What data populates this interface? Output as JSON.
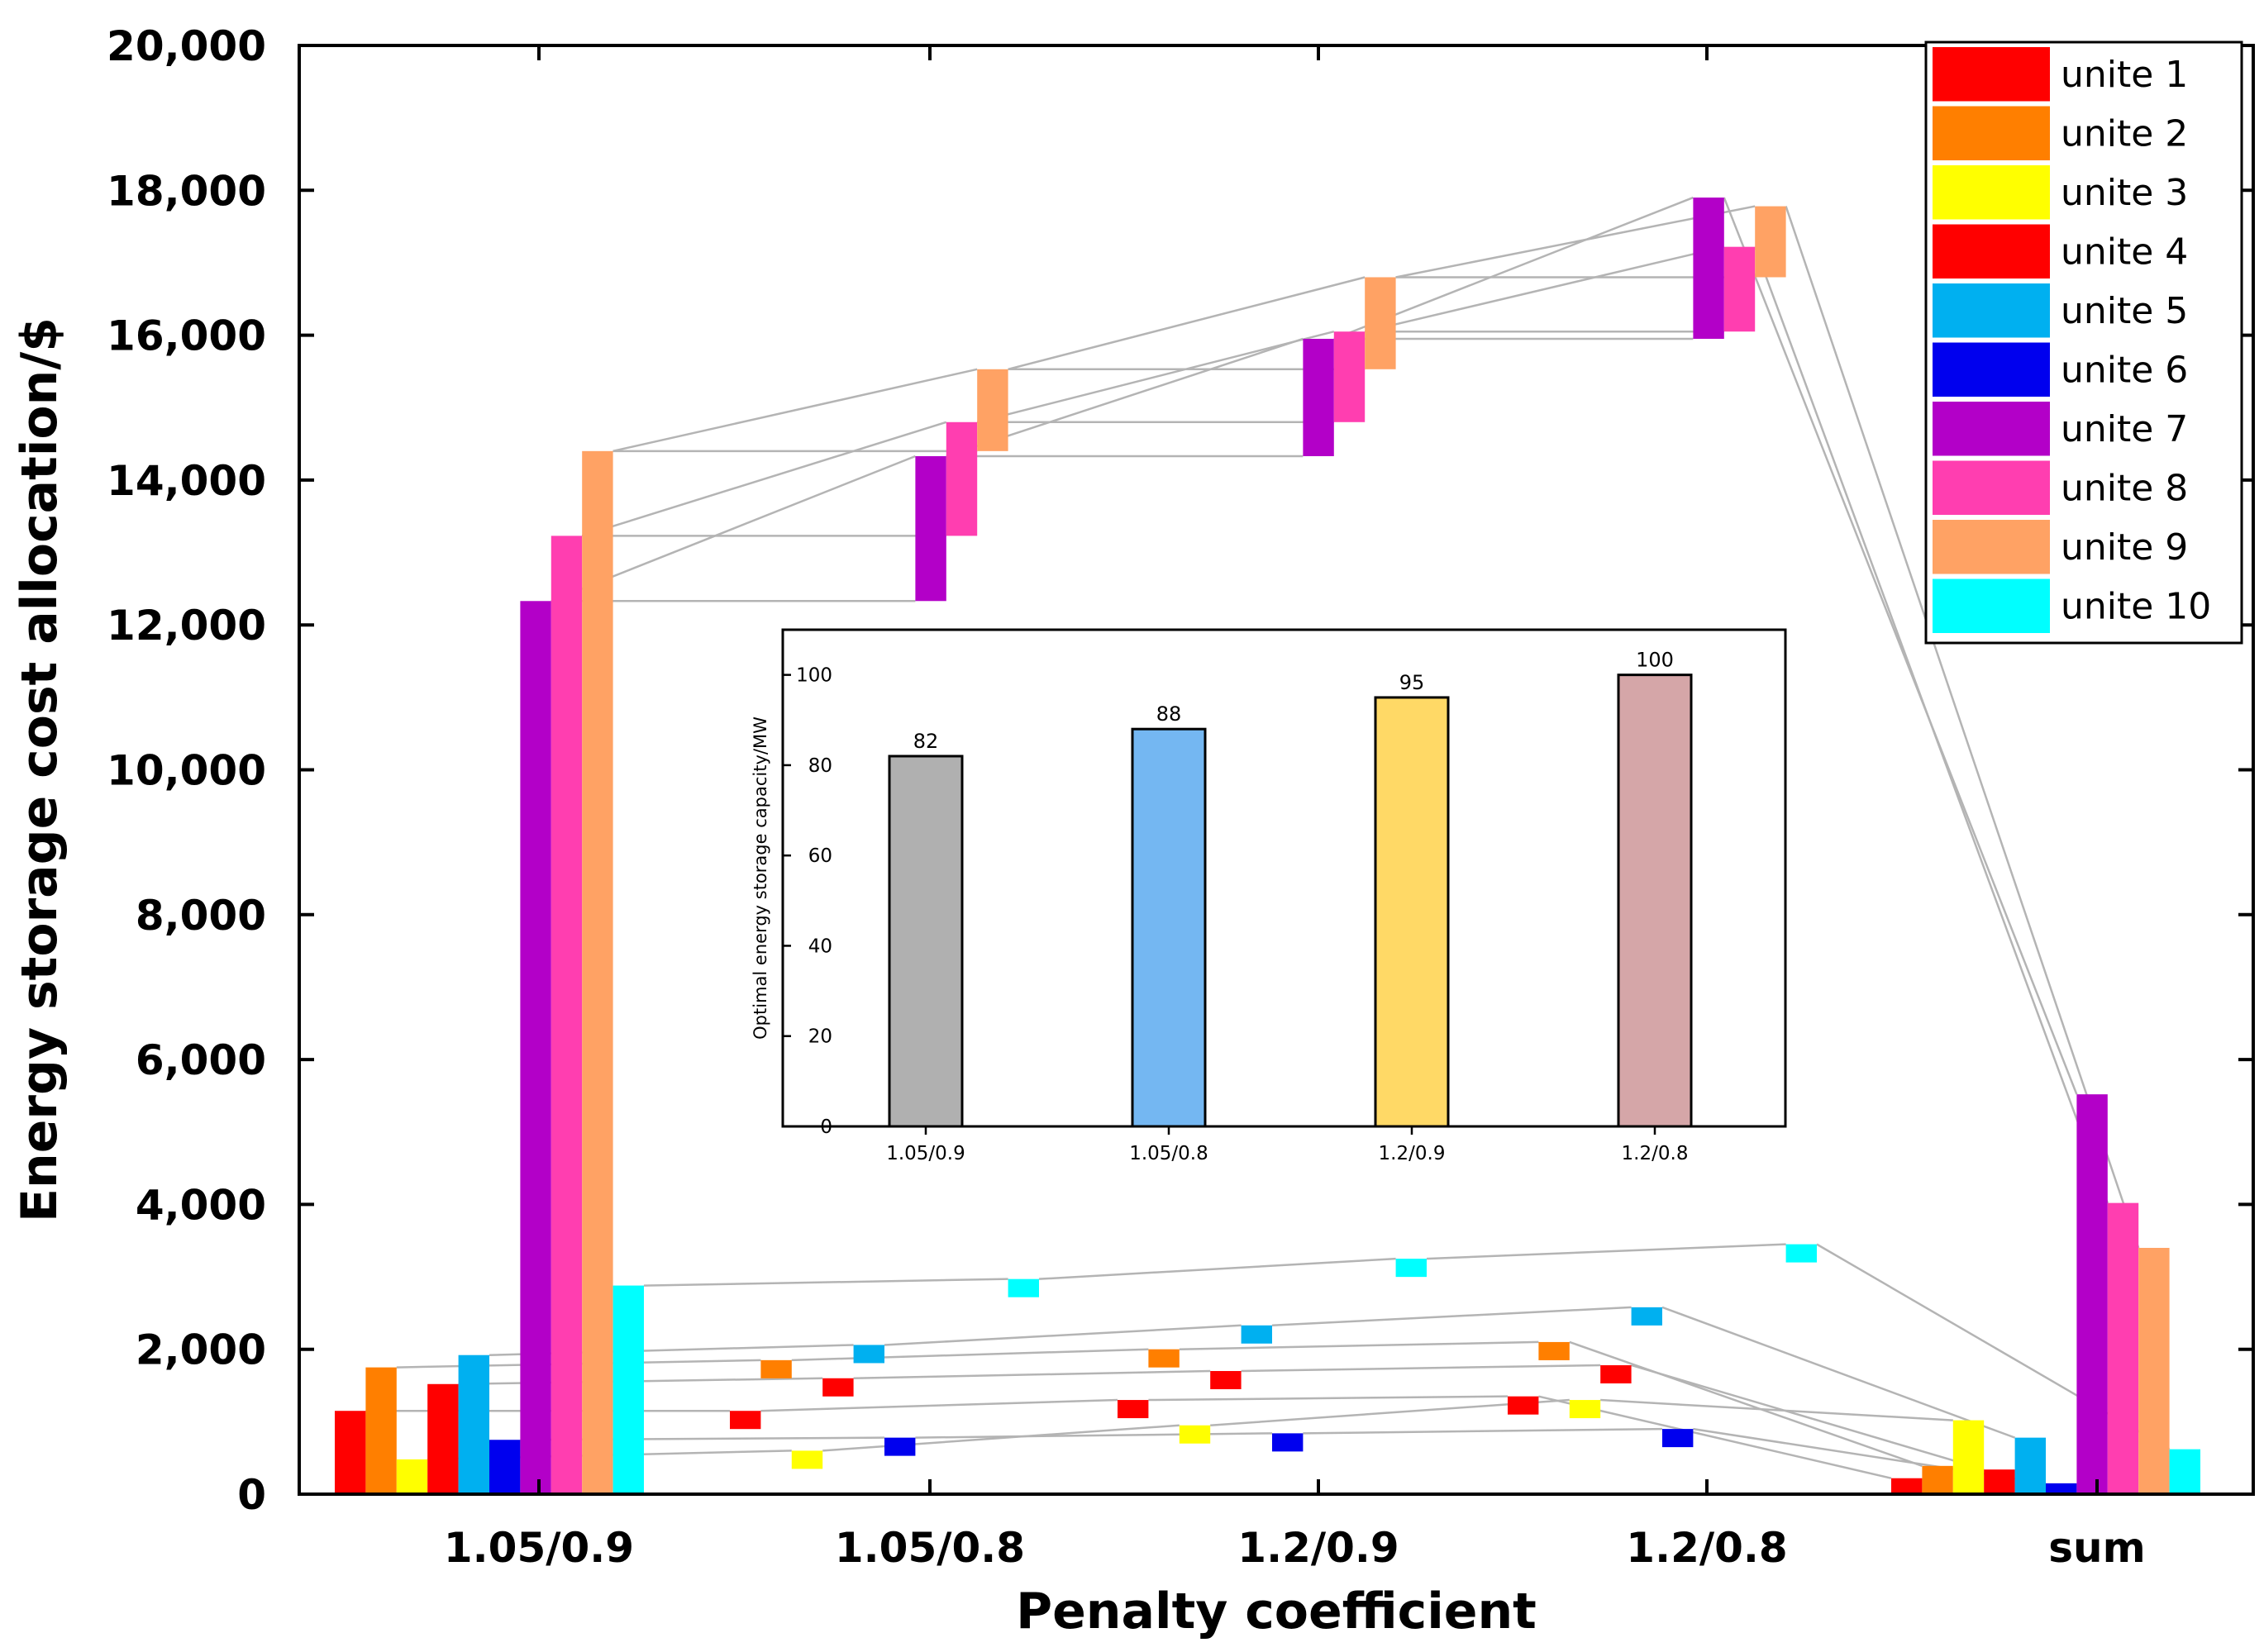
{
  "chart_data": [
    {
      "type": "bar",
      "subtype": "waterfall",
      "xlabel": "Penalty coefficient",
      "ylabel": "Energy storage cost allocation/$",
      "ylim": [
        0,
        20000
      ],
      "yticks": [
        0,
        2000,
        4000,
        6000,
        8000,
        10000,
        12000,
        14000,
        16000,
        18000,
        20000
      ],
      "ytick_labels": [
        "0",
        "2,000",
        "4,000",
        "6,000",
        "8,000",
        "10,000",
        "12,000",
        "14,000",
        "16,000",
        "18,000",
        "20,000"
      ],
      "categories": [
        "1.05/0.9",
        "1.05/0.8",
        "1.2/0.9",
        "1.2/0.8",
        "sum"
      ],
      "legend_position": "top-right",
      "series": [
        {
          "name": "unite 1",
          "color": "#ff0000",
          "values": [
            1150,
            1150,
            1300,
            1350,
            220
          ]
        },
        {
          "name": "unite 2",
          "color": "#ff7f00",
          "values": [
            1750,
            1850,
            2000,
            2100,
            390
          ]
        },
        {
          "name": "unite 3",
          "color": "#ffff00",
          "values": [
            480,
            600,
            950,
            1300,
            1020
          ]
        },
        {
          "name": "unite 4",
          "color": "#ff0000",
          "values": [
            1520,
            1600,
            1700,
            1780,
            340
          ]
        },
        {
          "name": "unite 5",
          "color": "#00b0f0",
          "values": [
            1920,
            2060,
            2330,
            2580,
            780
          ]
        },
        {
          "name": "unite 6",
          "color": "#0000ee",
          "values": [
            750,
            780,
            840,
            900,
            150
          ]
        },
        {
          "name": "unite 7",
          "color": "#b300c8",
          "range_values": [
            [
              0,
              12330
            ],
            [
              12330,
              14330
            ],
            [
              14330,
              15950
            ],
            [
              15950,
              17900
            ],
            [
              0,
              5520
            ]
          ]
        },
        {
          "name": "unite 8",
          "color": "#ff3eb0",
          "range_values": [
            [
              0,
              13230
            ],
            [
              13230,
              14800
            ],
            [
              14800,
              16050
            ],
            [
              16050,
              17220
            ],
            [
              0,
              4020
            ]
          ]
        },
        {
          "name": "unite 9",
          "color": "#ffa264",
          "range_values": [
            [
              0,
              14400
            ],
            [
              14400,
              15530
            ],
            [
              15530,
              16800
            ],
            [
              16800,
              17780
            ],
            [
              0,
              3400
            ]
          ]
        },
        {
          "name": "unite 10",
          "color": "#00ffff",
          "values": [
            2880,
            2970,
            3250,
            3450,
            620
          ]
        }
      ]
    },
    {
      "type": "bar",
      "role": "inset",
      "ylabel": "Optimal energy storage capacity/MW",
      "ylim": [
        0,
        110
      ],
      "yticks": [
        0,
        20,
        40,
        60,
        80,
        100
      ],
      "ytick_labels": [
        "0",
        "20",
        "40",
        "60",
        "80",
        "100"
      ],
      "categories": [
        "1.05/0.9",
        "1.05/0.8",
        "1.2/0.9",
        "1.2/0.8"
      ],
      "values": [
        82,
        88,
        95,
        100
      ],
      "value_labels": [
        "82",
        "88",
        "95",
        "100"
      ],
      "colors": [
        "#b0b0b0",
        "#74b7f2",
        "#ffd966",
        "#d5a6a8"
      ]
    }
  ]
}
